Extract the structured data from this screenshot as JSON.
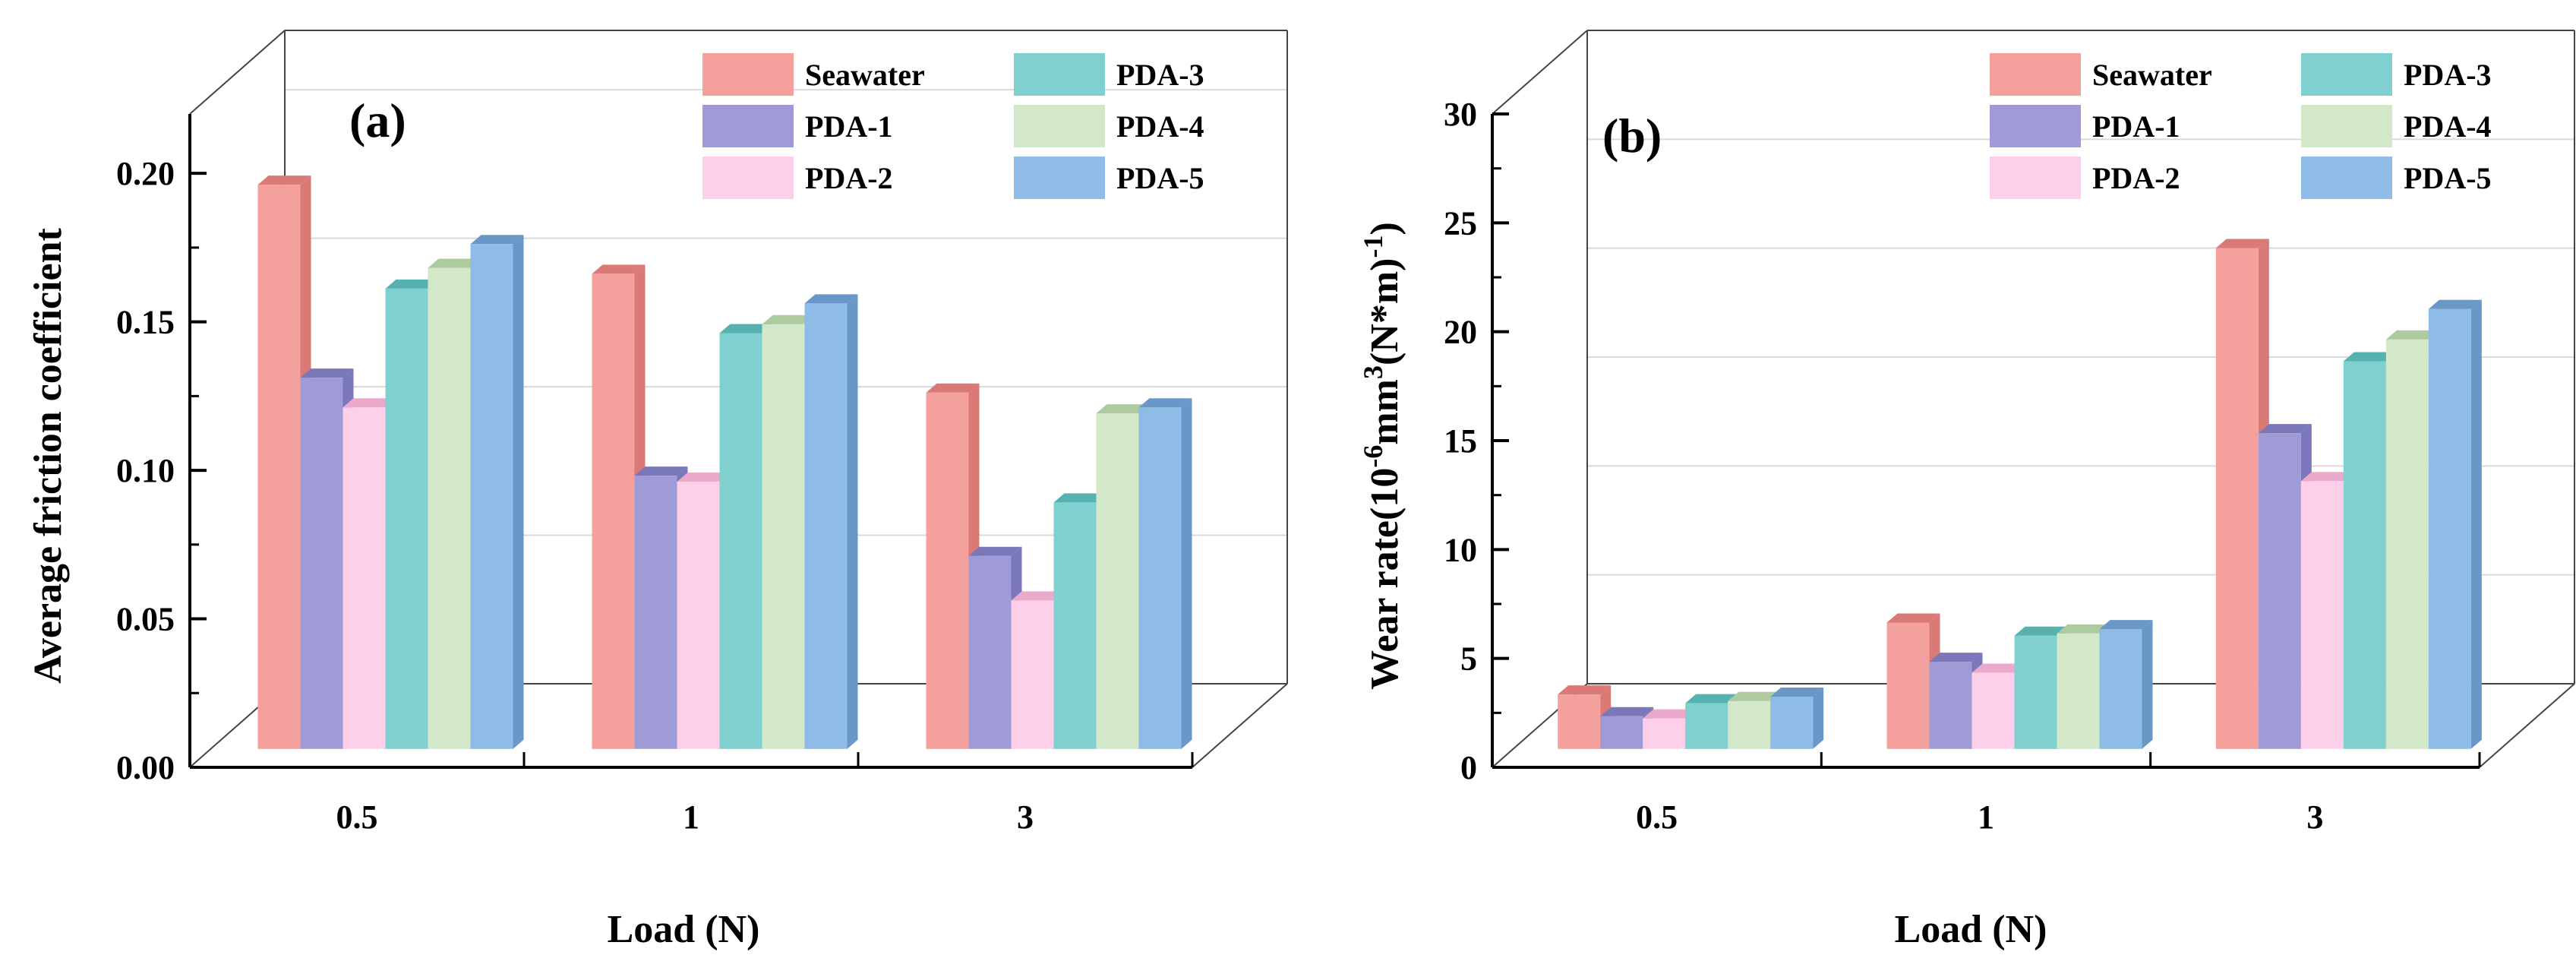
{
  "series_names": [
    "Seawater",
    "PDA-1",
    "PDA-2",
    "PDA-3",
    "PDA-4",
    "PDA-5"
  ],
  "series_colors": {
    "front": [
      "#f4a09c",
      "#9f9bd6",
      "#fdcfe9",
      "#7fd0cf",
      "#d3e8c8",
      "#8ebce6"
    ],
    "side": [
      "#d97a76",
      "#7b77bb",
      "#eba9cc",
      "#57b1b0",
      "#aecb9f",
      "#6897c8"
    ]
  },
  "chart_data": [
    {
      "type": "bar",
      "panel_label": "(a)",
      "title": "",
      "xlabel": "Load (N)",
      "ylabel": "Average friction coefficient",
      "categories": [
        "0.5",
        "1",
        "3"
      ],
      "ylim": [
        0,
        0.22
      ],
      "yticks": [
        "0.00",
        "0.05",
        "0.10",
        "0.15",
        "0.20"
      ],
      "ytick_values": [
        0,
        0.05,
        0.1,
        0.15,
        0.2
      ],
      "legend_position": "top-right",
      "grid": true,
      "series": [
        {
          "name": "Seawater",
          "values": [
            0.19,
            0.16,
            0.12
          ]
        },
        {
          "name": "PDA-1",
          "values": [
            0.125,
            0.092,
            0.065
          ]
        },
        {
          "name": "PDA-2",
          "values": [
            0.115,
            0.09,
            0.05
          ]
        },
        {
          "name": "PDA-3",
          "values": [
            0.155,
            0.14,
            0.083
          ]
        },
        {
          "name": "PDA-4",
          "values": [
            0.162,
            0.143,
            0.113
          ]
        },
        {
          "name": "PDA-5",
          "values": [
            0.17,
            0.15,
            0.115
          ]
        }
      ]
    },
    {
      "type": "bar",
      "panel_label": "(b)",
      "title": "",
      "xlabel": "Load (N)",
      "ylabel_main": "Wear rate(10",
      "ylabel_sup1": "-6",
      "ylabel_mid": "mm",
      "ylabel_sup2": "3",
      "ylabel_end": "(N*m)",
      "ylabel_sup3": "-1",
      "ylabel_close": ")",
      "categories": [
        "0.5",
        "1",
        "3"
      ],
      "ylim": [
        0,
        30
      ],
      "yticks": [
        "0",
        "5",
        "10",
        "15",
        "20",
        "25",
        "30"
      ],
      "ytick_values": [
        0,
        5,
        10,
        15,
        20,
        25,
        30
      ],
      "legend_position": "top-right",
      "grid": true,
      "series": [
        {
          "name": "Seawater",
          "values": [
            2.5,
            5.8,
            23
          ]
        },
        {
          "name": "PDA-1",
          "values": [
            1.5,
            4.0,
            14.5
          ]
        },
        {
          "name": "PDA-2",
          "values": [
            1.4,
            3.5,
            12.3
          ]
        },
        {
          "name": "PDA-3",
          "values": [
            2.1,
            5.2,
            17.8
          ]
        },
        {
          "name": "PDA-4",
          "values": [
            2.2,
            5.3,
            18.8
          ]
        },
        {
          "name": "PDA-5",
          "values": [
            2.4,
            5.5,
            20.2
          ]
        }
      ]
    }
  ]
}
